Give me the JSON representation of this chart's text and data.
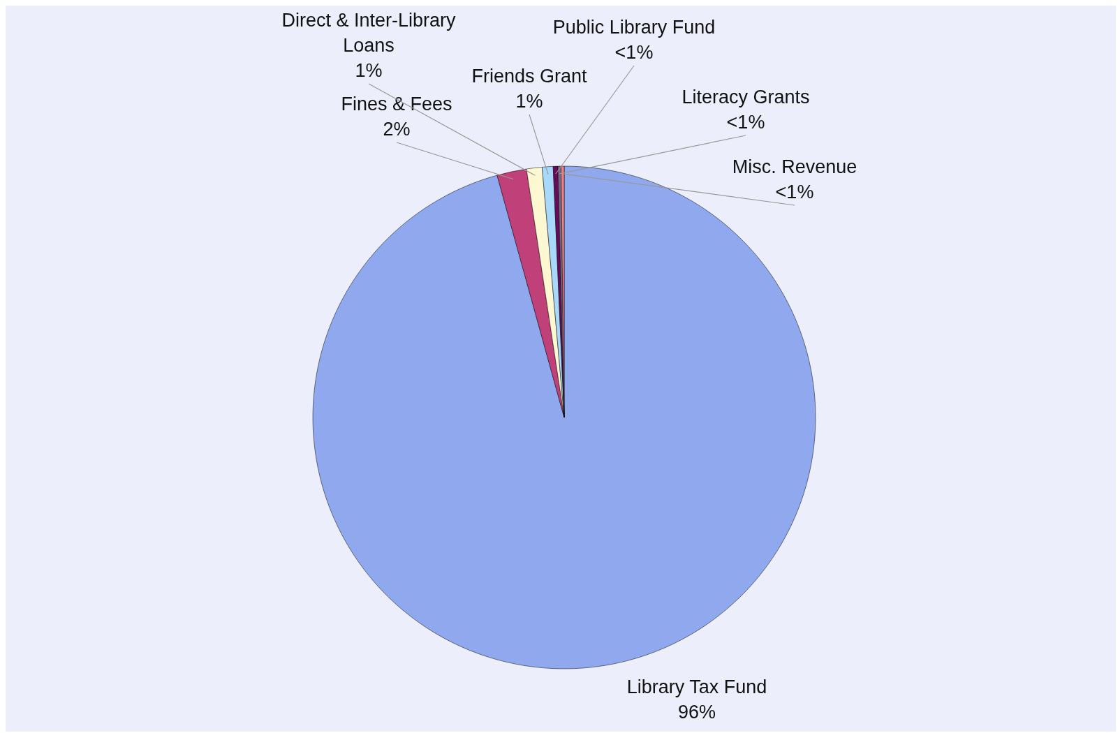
{
  "chart_data": {
    "type": "pie",
    "categories": [
      "Library Tax Fund",
      "Fines & Fees",
      "Direct & Inter-Library Loans",
      "Friends Grant",
      "Public Library Fund",
      "Literacy Grants",
      "Misc. Revenue"
    ],
    "values": [
      95.7,
      1.9,
      1.0,
      0.7,
      0.3,
      0.2,
      0.2
    ],
    "value_labels": [
      "96%",
      "2%",
      "1%",
      "1%",
      "<1%",
      "<1%",
      "<1%"
    ],
    "colors": [
      "#8fa8ee",
      "#c0407a",
      "#fdf8d2",
      "#a8d8fa",
      "#6a0a5a",
      "#7a6a8a",
      "#f08080"
    ]
  }
}
